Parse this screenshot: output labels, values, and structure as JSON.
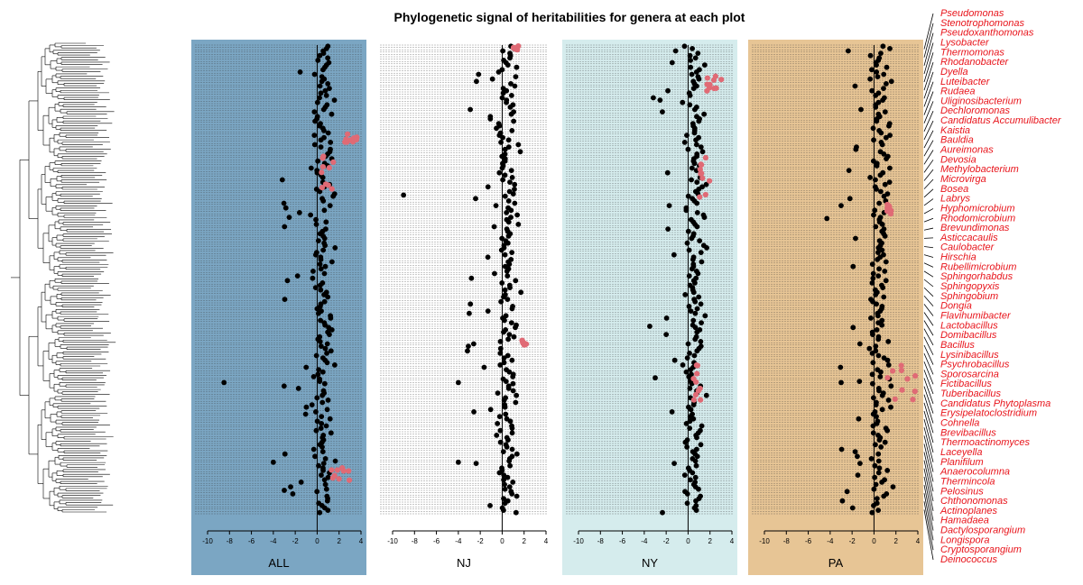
{
  "title": "Phylogenetic signal of heritabilities for genera at each plot",
  "colors": {
    "all_bg": "#7ba6c3",
    "ny_bg": "#d5eced",
    "pa_bg": "#e7c595",
    "point_normal": "#000000",
    "point_signal": "#e06a75",
    "genus_text": "#e8141b"
  },
  "chart_data": [
    {
      "type": "scatter",
      "panel": "ALL",
      "xlim": [
        -10,
        4
      ],
      "xticks": [
        "-10",
        "-8",
        "-6",
        "-4",
        "-2",
        "0",
        "2",
        "4"
      ],
      "points_shown": 200,
      "highlight_clusters": [
        {
          "x": [
            2.5,
            3.7
          ],
          "y_frac": [
            0.19,
            0.21
          ]
        },
        {
          "x": [
            0.4,
            2.0
          ],
          "y_frac": [
            0.23,
            0.31
          ]
        },
        {
          "x": [
            0.8,
            3.0
          ],
          "y_frac": [
            0.9,
            0.93
          ]
        }
      ],
      "outliers": [
        {
          "x": -8.5,
          "y_frac": 0.72
        },
        {
          "x": -4.0,
          "y_frac": 0.89
        },
        {
          "x": -3.0,
          "y_frac": 0.95
        }
      ]
    },
    {
      "type": "scatter",
      "panel": "NJ",
      "xlim": [
        -10,
        4
      ],
      "xticks": [
        "-10",
        "-8",
        "-6",
        "-4",
        "-2",
        "0",
        "2",
        "4"
      ],
      "points_shown": 200,
      "highlight_clusters": [
        {
          "x": [
            1.0,
            1.5
          ],
          "y_frac": [
            0.0,
            0.01
          ]
        },
        {
          "x": [
            1.8,
            2.2
          ],
          "y_frac": [
            0.63,
            0.64
          ]
        }
      ],
      "outliers": [
        {
          "x": -9.0,
          "y_frac": 0.32
        },
        {
          "x": -4.0,
          "y_frac": 0.72
        },
        {
          "x": -4.0,
          "y_frac": 0.89
        }
      ]
    },
    {
      "type": "scatter",
      "panel": "NY",
      "xlim": [
        -10,
        4
      ],
      "xticks": [
        "-10",
        "-8",
        "-6",
        "-4",
        "-2",
        "0",
        "2",
        "4"
      ],
      "points_shown": 200,
      "highlight_clusters": [
        {
          "x": [
            1.5,
            3.3
          ],
          "y_frac": [
            0.06,
            0.1
          ]
        },
        {
          "x": [
            1.0,
            2.0
          ],
          "y_frac": [
            0.24,
            0.33
          ]
        },
        {
          "x": [
            0.3,
            1.5
          ],
          "y_frac": [
            0.68,
            0.76
          ]
        }
      ],
      "outliers": [
        {
          "x": -3.5,
          "y_frac": 0.6
        },
        {
          "x": -3.0,
          "y_frac": 0.71
        }
      ]
    },
    {
      "type": "scatter",
      "panel": "PA",
      "xlim": [
        -10,
        4
      ],
      "xticks": [
        "-10",
        "-8",
        "-6",
        "-4",
        "-2",
        "0",
        "2",
        "4"
      ],
      "points_shown": 200,
      "highlight_clusters": [
        {
          "x": [
            1.0,
            3.8
          ],
          "y_frac": [
            0.68,
            0.76
          ]
        },
        {
          "x": [
            1.2,
            1.6
          ],
          "y_frac": [
            0.34,
            0.36
          ]
        }
      ],
      "outliers": [
        {
          "x": -4.3,
          "y_frac": 0.37
        },
        {
          "x": -3.0,
          "y_frac": 0.72
        }
      ]
    }
  ],
  "genera": [
    "Pseudomonas",
    "Stenotrophomonas",
    "Pseudoxanthomonas",
    "Lysobacter",
    "Thermomonas",
    "Rhodanobacter",
    "Dyella",
    "Luteibacter",
    "Rudaea",
    "Uliginosibacterium",
    "Dechloromonas",
    "Candidatus Accumulibacter",
    "Kaistia",
    "Bauldia",
    "Aureimonas",
    "Devosia",
    "Methylobacterium",
    "Microvirga",
    "Bosea",
    "Labrys",
    "Hyphomicrobium",
    "Rhodomicrobium",
    "Brevundimonas",
    "Asticcacaulis",
    "Caulobacter",
    "Hirschia",
    "Rubellimicrobium",
    "Sphingorhabdus",
    "Sphingopyxis",
    "Sphingobium",
    "Dongia",
    "Flavihumibacter",
    "Lactobacillus",
    "Domibacillus",
    "Bacillus",
    "Lysinibacillus",
    "Psychrobacillus",
    "Sporosarcina",
    "Fictibacillus",
    "Tuberibacillus",
    "Candidatus Phytoplasma",
    "Erysipelatoclostridium",
    "Cohnella",
    "Brevibacillus",
    "Thermoactinomyces",
    "Laceyella",
    "Planifilum",
    "Anaerocolumna",
    "Thermincola",
    "Pelosinus",
    "Chthonomonas",
    "Actinoplanes",
    "Hamadaea",
    "Dactylosporangium",
    "Longispora",
    "Cryptosporangium",
    "Deinococcus"
  ]
}
